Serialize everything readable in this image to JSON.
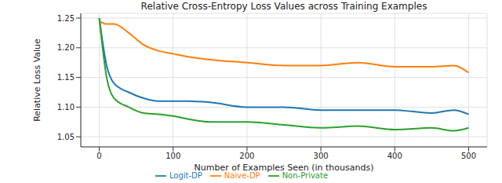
{
  "chart_data": {
    "type": "line",
    "title": "Relative Cross-Entropy Loss Values across Training Examples",
    "x_label": "Number of Examples Seen (in thousands)",
    "y_label": "Relative Loss Value",
    "x": [
      0,
      10,
      20,
      40,
      60,
      80,
      100,
      120,
      150,
      200,
      250,
      300,
      350,
      400,
      450,
      480,
      500
    ],
    "series": [
      {
        "name": "Logit-DP",
        "color": "#1f77b4",
        "values": [
          1.25,
          1.17,
          1.14,
          1.125,
          1.115,
          1.11,
          1.11,
          1.11,
          1.108,
          1.1,
          1.1,
          1.095,
          1.095,
          1.095,
          1.09,
          1.095,
          1.088
        ]
      },
      {
        "name": "Naive-DP",
        "color": "#ff7f0e",
        "values": [
          1.245,
          1.24,
          1.24,
          1.225,
          1.205,
          1.195,
          1.19,
          1.185,
          1.18,
          1.175,
          1.17,
          1.17,
          1.175,
          1.168,
          1.168,
          1.17,
          1.158
        ]
      },
      {
        "name": "Non-Private",
        "color": "#2ca02c",
        "values": [
          1.25,
          1.15,
          1.115,
          1.1,
          1.09,
          1.088,
          1.085,
          1.08,
          1.075,
          1.075,
          1.07,
          1.065,
          1.068,
          1.062,
          1.065,
          1.06,
          1.065
        ]
      }
    ],
    "xlim": [
      -25,
      525
    ],
    "ylim": [
      1.033,
      1.258
    ],
    "xticks": [
      0,
      100,
      200,
      300,
      400,
      500
    ],
    "yticks": [
      {
        "value": 1.05,
        "label": "1.05"
      },
      {
        "value": 1.1,
        "label": "1.10"
      },
      {
        "value": 1.15,
        "label": "1.15"
      },
      {
        "value": 1.2,
        "label": "1.20"
      },
      {
        "value": 1.25,
        "label": "1.25"
      }
    ],
    "grid": true,
    "legend": "bottom"
  }
}
